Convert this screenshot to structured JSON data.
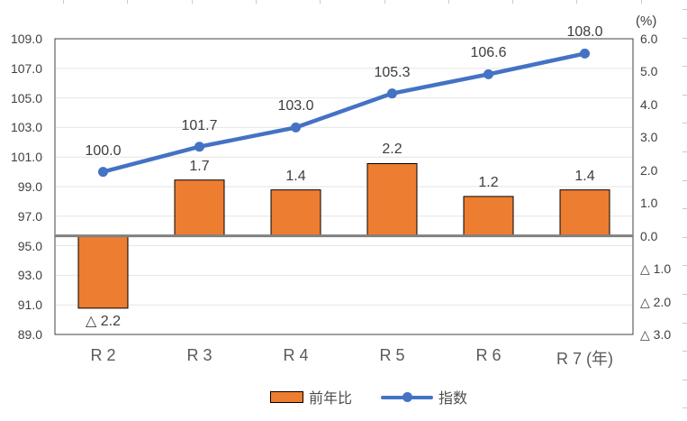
{
  "chart_data": {
    "type": "combo-bar-line",
    "categories": [
      "R 2",
      "R 3",
      "R 4",
      "R 5",
      "R 6",
      "R 7 (年)"
    ],
    "series": [
      {
        "name": "前年比",
        "type": "bar",
        "axis": "right",
        "color": "#ED7D31",
        "values": [
          -2.2,
          1.7,
          1.4,
          2.2,
          1.2,
          1.4
        ],
        "labels": [
          "△ 2.2",
          "1.7",
          "1.4",
          "2.2",
          "1.2",
          "1.4"
        ]
      },
      {
        "name": "指数",
        "type": "line",
        "axis": "left",
        "color": "#4472C4",
        "values": [
          100.0,
          101.7,
          103.0,
          105.3,
          106.6,
          108.0
        ],
        "labels": [
          "100.0",
          "101.7",
          "103.0",
          "105.3",
          "106.6",
          "108.0"
        ]
      }
    ],
    "left_axis": {
      "min": 89.0,
      "max": 109.0,
      "step": 2.0,
      "tick_labels": [
        "109.0",
        "107.0",
        "105.0",
        "103.0",
        "101.0",
        "99.0",
        "97.0",
        "95.0",
        "93.0",
        "91.0",
        "89.0"
      ]
    },
    "right_axis": {
      "min": -3.0,
      "max": 6.0,
      "step": 1.0,
      "unit_label": "(%)",
      "tick_labels": [
        "6.0",
        "5.0",
        "4.0",
        "3.0",
        "2.0",
        "1.0",
        "0.0",
        "△ 1.0",
        "△ 2.0",
        "△ 3.0"
      ]
    },
    "legend": [
      {
        "label": "前年比",
        "swatch": "bar"
      },
      {
        "label": "指数",
        "swatch": "line-marker"
      }
    ],
    "grid": true,
    "legend_position": "bottom"
  },
  "colors": {
    "bar_fill": "#ED7D31",
    "bar_border": "#000000",
    "line": "#4472C4",
    "gridline": "#E6E6E6",
    "zero_line": "#808080",
    "plot_border": "#404040",
    "tick_label": "#404040",
    "category_label": "#595959",
    "data_label": "#3D3D3D",
    "edge_tick": "#C9C9C9"
  }
}
